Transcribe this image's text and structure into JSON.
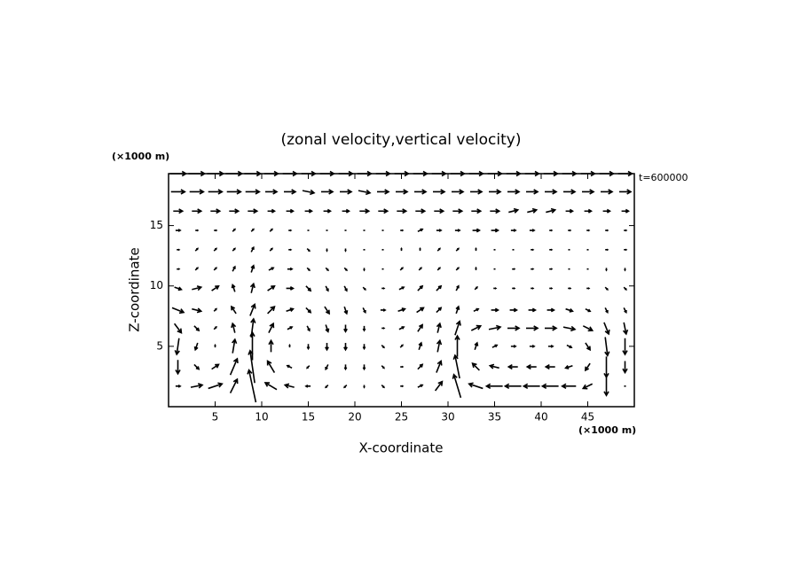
{
  "chart_data": {
    "type": "quiver",
    "title": "(zonal velocity,vertical velocity)",
    "x_label": "X-coordinate",
    "y_label": "Z-coordinate",
    "x_unit": "(×1000 m)",
    "y_unit": "(×1000 m)",
    "annotation": "t=600000",
    "xlim": [
      0,
      50
    ],
    "ylim": [
      0,
      19.3
    ],
    "xticks": [
      5,
      10,
      15,
      20,
      25,
      30,
      35,
      40,
      45
    ],
    "yticks": [
      5,
      10,
      15
    ],
    "color": "#000000",
    "x": [
      1,
      3,
      5,
      7,
      9,
      11,
      13,
      15,
      17,
      19,
      21,
      23,
      25,
      27,
      29,
      31,
      33,
      35,
      37,
      39,
      41,
      43,
      45,
      47,
      49
    ],
    "z": [
      1.7,
      3.3,
      5,
      6.5,
      8,
      9.8,
      11.4,
      13,
      14.6,
      16.2,
      17.8,
      19.3
    ],
    "u": [
      [
        2,
        5,
        6,
        3,
        -3,
        -5,
        -4,
        -2,
        -1,
        -1,
        0,
        1,
        1,
        2,
        3,
        -3,
        -6,
        -7,
        -7,
        -7,
        -7,
        -6,
        -4,
        0,
        0
      ],
      [
        0,
        2,
        3,
        3,
        -2,
        -3,
        -2,
        -1,
        -1,
        0,
        0,
        1,
        1,
        2,
        2,
        -2,
        -3,
        -4,
        -4,
        -4,
        -4,
        -3,
        -2,
        0,
        0
      ],
      [
        -1,
        -1,
        0,
        1,
        0,
        0,
        0,
        0,
        0,
        0,
        0,
        1,
        1,
        1,
        1,
        0,
        1,
        2,
        2,
        2,
        2,
        2,
        2,
        1,
        0
      ],
      [
        3,
        2,
        1,
        -1,
        1,
        2,
        2,
        1,
        1,
        0,
        0,
        1,
        2,
        2,
        1,
        2,
        4,
        5,
        5,
        5,
        5,
        5,
        4,
        2,
        1
      ],
      [
        5,
        4,
        1,
        -2,
        2,
        3,
        3,
        2,
        2,
        1,
        1,
        2,
        3,
        3,
        2,
        1,
        2,
        3,
        3,
        3,
        3,
        3,
        2,
        1,
        1
      ],
      [
        3,
        4,
        3,
        -1,
        1,
        3,
        3,
        2,
        1,
        1,
        1,
        1,
        2,
        2,
        2,
        1,
        1,
        1,
        1,
        1,
        1,
        1,
        1,
        1,
        1
      ],
      [
        1,
        1,
        1,
        1,
        1,
        2,
        2,
        1,
        1,
        1,
        0,
        0,
        1,
        1,
        1,
        1,
        0,
        0,
        1,
        1,
        1,
        0,
        0,
        0,
        0
      ],
      [
        1,
        1,
        1,
        1,
        1,
        1,
        1,
        1,
        0,
        0,
        0,
        0,
        0,
        0,
        1,
        1,
        0,
        0,
        0,
        1,
        1,
        0,
        0,
        1,
        1
      ],
      [
        2,
        1,
        1,
        1,
        1,
        1,
        1,
        0,
        0,
        0,
        0,
        0,
        1,
        2,
        2,
        2,
        3,
        3,
        2,
        2,
        1,
        1,
        1,
        1,
        1
      ],
      [
        4,
        4,
        4,
        4,
        4,
        3,
        3,
        3,
        3,
        3,
        4,
        4,
        4,
        4,
        4,
        4,
        4,
        4,
        4,
        4,
        4,
        3,
        3,
        3,
        3
      ],
      [
        6,
        6,
        6,
        6,
        6,
        5,
        5,
        5,
        5,
        5,
        5,
        5,
        5,
        5,
        5,
        5,
        5,
        5,
        5,
        5,
        5,
        5,
        5,
        5,
        5
      ],
      [
        7,
        7,
        7,
        7,
        7,
        6,
        6,
        6,
        6,
        6,
        6,
        6,
        6,
        6,
        6,
        6,
        6,
        6,
        6,
        6,
        6,
        6,
        6,
        6,
        6
      ]
    ],
    "w": [
      [
        0,
        1,
        2,
        6,
        14,
        3,
        1,
        0,
        -1,
        -1,
        -1,
        -1,
        0,
        1,
        4,
        10,
        2,
        0,
        0,
        0,
        0,
        0,
        -2,
        -8,
        0
      ],
      [
        -6,
        -2,
        2,
        7,
        14,
        5,
        1,
        -1,
        -2,
        -2,
        -2,
        -1,
        0,
        2,
        5,
        10,
        3,
        1,
        0,
        0,
        0,
        -1,
        -3,
        -9,
        -5
      ],
      [
        -7,
        -3,
        1,
        6,
        12,
        5,
        1,
        -2,
        -3,
        -3,
        -2,
        -1,
        1,
        3,
        5,
        9,
        3,
        1,
        0,
        0,
        0,
        -1,
        -3,
        -8,
        -7
      ],
      [
        -4,
        -2,
        1,
        4,
        8,
        4,
        1,
        -2,
        -3,
        -3,
        -2,
        0,
        1,
        3,
        4,
        6,
        2,
        1,
        0,
        0,
        0,
        -1,
        -2,
        -5,
        -5
      ],
      [
        -2,
        -1,
        1,
        3,
        5,
        3,
        1,
        -2,
        -3,
        -3,
        -2,
        0,
        1,
        2,
        2,
        3,
        1,
        0,
        0,
        0,
        0,
        -1,
        -1,
        -2,
        -2
      ],
      [
        -1,
        1,
        2,
        3,
        4,
        2,
        0,
        -2,
        -2,
        -2,
        -1,
        0,
        1,
        2,
        2,
        2,
        1,
        0,
        0,
        0,
        0,
        0,
        0,
        -1,
        -1
      ],
      [
        0,
        1,
        1,
        2,
        3,
        1,
        0,
        -1,
        -1,
        -1,
        -1,
        0,
        1,
        1,
        1,
        1,
        1,
        0,
        0,
        0,
        0,
        0,
        0,
        -1,
        -1
      ],
      [
        0,
        1,
        1,
        1,
        2,
        1,
        0,
        -1,
        -1,
        -1,
        0,
        0,
        1,
        1,
        1,
        1,
        1,
        0,
        0,
        0,
        0,
        0,
        0,
        0,
        0
      ],
      [
        0,
        0,
        0,
        1,
        1,
        1,
        0,
        0,
        0,
        0,
        0,
        0,
        0,
        1,
        0,
        0,
        0,
        0,
        0,
        0,
        0,
        0,
        0,
        0,
        0
      ],
      [
        0,
        0,
        0,
        0,
        0,
        0,
        0,
        0,
        0,
        0,
        0,
        0,
        0,
        0,
        0,
        0,
        0,
        0,
        1,
        1,
        1,
        0,
        0,
        0,
        0
      ],
      [
        0,
        0,
        0,
        0,
        0,
        0,
        0,
        -1,
        0,
        0,
        -1,
        0,
        0,
        0,
        0,
        0,
        0,
        0,
        0,
        0,
        0,
        0,
        0,
        0,
        0
      ],
      [
        0,
        0,
        0,
        0,
        0,
        0,
        0,
        0,
        0,
        0,
        0,
        0,
        0,
        0,
        0,
        0,
        0,
        0,
        0,
        0,
        0,
        0,
        0,
        0,
        0
      ]
    ]
  }
}
